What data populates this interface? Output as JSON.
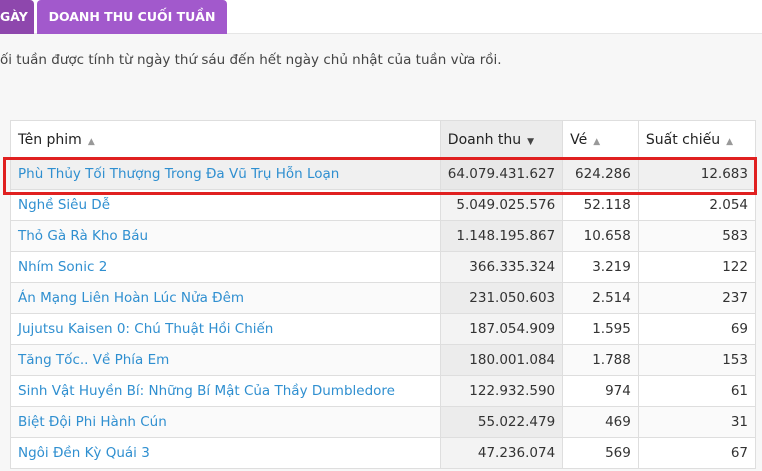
{
  "tabs": [
    {
      "label": "GÀY",
      "active": false
    },
    {
      "label": "DOANH THU CUỐI TUẦN",
      "active": true
    }
  ],
  "note": "ối tuần được tính từ ngày thứ sáu đến hết ngày chủ nhật của tuần vừa rồi.",
  "table": {
    "columns": [
      {
        "label": "Tên phim",
        "sort": "asc"
      },
      {
        "label": "Doanh thu",
        "sort": "desc",
        "active": true
      },
      {
        "label": "Vé",
        "sort": "asc"
      },
      {
        "label": "Suất chiếu",
        "sort": "asc"
      }
    ],
    "rows": [
      [
        "Phù Thủy Tối Thượng Trong Đa Vũ Trụ Hỗn Loạn",
        "64.079.431.627",
        "624.286",
        "12.683"
      ],
      [
        "Nghề Siêu Dễ",
        "5.049.025.576",
        "52.118",
        "2.054"
      ],
      [
        "Thỏ Gà Rà Kho Báu",
        "1.148.195.867",
        "10.658",
        "583"
      ],
      [
        "Nhím Sonic 2",
        "366.335.324",
        "3.219",
        "122"
      ],
      [
        "Án Mạng Liên Hoàn Lúc Nửa Đêm",
        "231.050.603",
        "2.514",
        "237"
      ],
      [
        "Jujutsu Kaisen 0: Chú Thuật Hồi Chiến",
        "187.054.909",
        "1.595",
        "69"
      ],
      [
        "Tăng Tốc.. Về Phía Em",
        "180.001.084",
        "1.788",
        "153"
      ],
      [
        "Sinh Vật Huyền Bí: Những Bí Mật Của Thầy Dumbledore",
        "122.932.590",
        "974",
        "61"
      ],
      [
        "Biệt Đội Phi Hành Cún",
        "55.022.479",
        "469",
        "31"
      ],
      [
        "Ngôi Đền Kỳ Quái 3",
        "47.236.074",
        "569",
        "67"
      ]
    ]
  },
  "highlight_color": "#e02020",
  "accent": "#a259cc"
}
